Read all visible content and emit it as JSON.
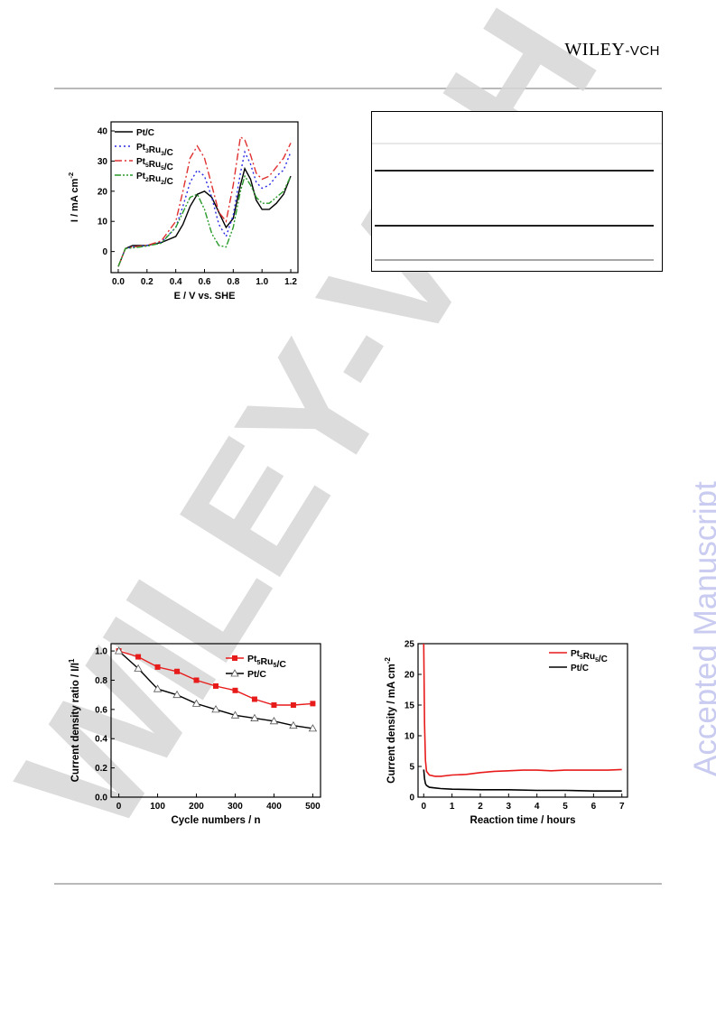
{
  "header": {
    "publisher_main": "WILEY",
    "publisher_suffix": "-VCH"
  },
  "watermarks": {
    "side": "Accepted Manuscript",
    "diagonal": "WILEY-VCH"
  },
  "figures": [
    {
      "id": "cv",
      "xlabel": "E / V vs. SHE",
      "ylabel": "I / mA cm",
      "ylabel_sup": "-2",
      "legend": [
        {
          "base": "Pt/C",
          "sub1": "",
          "mid": "",
          "sub2": "",
          "tail": ""
        },
        {
          "base": "Pt",
          "sub1": "3",
          "mid": "Ru",
          "sub2": "3",
          "tail": "/C"
        },
        {
          "base": "Pt",
          "sub1": "5",
          "mid": "Ru",
          "sub2": "5",
          "tail": "/C"
        },
        {
          "base": "Pt",
          "sub1": "2",
          "mid": "Ru",
          "sub2": "2",
          "tail": "/C"
        }
      ]
    },
    {
      "id": "stability-cycles",
      "xlabel": "Cycle numbers / n",
      "ylabel": "Current density ratio / I/I",
      "ylabel_sup": "1",
      "legend": [
        {
          "base": "Pt",
          "sub1": "5",
          "mid": "Ru",
          "sub2": "5",
          "tail": "/C"
        },
        {
          "base": "Pt/C",
          "sub1": "",
          "mid": "",
          "sub2": "",
          "tail": ""
        }
      ]
    },
    {
      "id": "chronoamperometry",
      "xlabel": "Reaction time / hours",
      "ylabel": "Current density / mA cm",
      "ylabel_sup": "-2",
      "legend": [
        {
          "base": "Pt",
          "sub1": "5",
          "mid": "Ru",
          "sub2": "5",
          "tail": "/C"
        },
        {
          "base": "Pt/C",
          "sub1": "",
          "mid": "",
          "sub2": "",
          "tail": ""
        }
      ]
    }
  ],
  "chart_data": [
    {
      "type": "line",
      "xlabel": "E / V vs. SHE",
      "ylabel": "I / mA cm-2",
      "xlim": [
        -0.05,
        1.25
      ],
      "ylim": [
        -7,
        43
      ],
      "xticks": [
        "0.0",
        "0.2",
        "0.4",
        "0.6",
        "0.8",
        "1.0",
        "1.2"
      ],
      "yticks": [
        "0",
        "10",
        "20",
        "30",
        "40"
      ],
      "series": [
        {
          "name": "Pt/C",
          "color": "#000000",
          "style": "solid",
          "x": [
            0.0,
            0.05,
            0.1,
            0.2,
            0.3,
            0.4,
            0.45,
            0.5,
            0.55,
            0.6,
            0.65,
            0.7,
            0.75,
            0.8,
            0.85,
            0.88,
            0.92,
            0.96,
            1.0,
            1.05,
            1.1,
            1.15,
            1.2
          ],
          "y": [
            -5,
            1,
            2,
            2,
            3,
            5,
            9,
            15,
            19,
            20,
            18,
            13,
            8,
            11,
            22,
            27.5,
            24,
            17,
            14,
            14,
            16,
            19,
            25
          ]
        },
        {
          "name": "Pt3Ru3/C",
          "color": "#2a2ae6",
          "style": "dotted",
          "x": [
            0.0,
            0.05,
            0.1,
            0.2,
            0.3,
            0.4,
            0.45,
            0.5,
            0.55,
            0.6,
            0.65,
            0.7,
            0.75,
            0.8,
            0.85,
            0.88,
            0.92,
            0.96,
            1.0,
            1.05,
            1.1,
            1.15,
            1.2
          ],
          "y": [
            -5,
            1,
            1.5,
            2,
            3,
            8,
            15,
            23,
            27,
            25,
            18,
            9,
            5,
            12,
            26,
            33,
            29,
            23,
            21,
            22,
            25,
            27,
            33
          ]
        },
        {
          "name": "Pt5Ru5/C",
          "color": "#e03030",
          "style": "dashdot",
          "x": [
            0.0,
            0.05,
            0.1,
            0.2,
            0.3,
            0.4,
            0.45,
            0.5,
            0.55,
            0.6,
            0.65,
            0.7,
            0.75,
            0.8,
            0.85,
            0.88,
            0.92,
            0.96,
            1.0,
            1.05,
            1.1,
            1.15,
            1.2
          ],
          "y": [
            -5,
            1,
            1.5,
            2,
            3.5,
            10,
            20,
            31,
            35,
            31,
            22,
            13,
            10,
            22,
            38,
            37,
            32,
            26,
            24,
            25,
            28,
            31,
            36
          ]
        },
        {
          "name": "Pt2Ru2/C",
          "color": "#2a9a2a",
          "style": "dashdotdot",
          "x": [
            0.0,
            0.05,
            0.1,
            0.2,
            0.3,
            0.4,
            0.45,
            0.5,
            0.55,
            0.6,
            0.65,
            0.7,
            0.75,
            0.8,
            0.85,
            0.88,
            0.92,
            0.96,
            1.0,
            1.05,
            1.1,
            1.15,
            1.2
          ],
          "y": [
            -5,
            1,
            1.2,
            1.8,
            2.8,
            8,
            13,
            18,
            19,
            14,
            6,
            2,
            1.5,
            8,
            20,
            25,
            22,
            18,
            16,
            16,
            18,
            20,
            25
          ]
        }
      ]
    },
    {
      "type": "line",
      "xlabel": "Cycle numbers / n",
      "ylabel": "Current density ratio / I/I1",
      "xlim": [
        -20,
        520
      ],
      "ylim": [
        0.0,
        1.05
      ],
      "xticks": [
        "0",
        "100",
        "200",
        "300",
        "400",
        "500"
      ],
      "yticks": [
        "0.0",
        "0.2",
        "0.4",
        "0.6",
        "0.8",
        "1.0"
      ],
      "series": [
        {
          "name": "Pt5Ru5/C",
          "color": "#e81b1b",
          "marker": "square",
          "x": [
            0,
            50,
            100,
            150,
            200,
            250,
            300,
            350,
            400,
            450,
            500
          ],
          "y": [
            1.0,
            0.96,
            0.89,
            0.86,
            0.8,
            0.76,
            0.73,
            0.67,
            0.63,
            0.63,
            0.64
          ]
        },
        {
          "name": "Pt/C",
          "color": "#000000",
          "marker": "open-triangle",
          "x": [
            0,
            50,
            100,
            150,
            200,
            250,
            300,
            350,
            400,
            450,
            500
          ],
          "y": [
            1.0,
            0.88,
            0.74,
            0.7,
            0.64,
            0.6,
            0.56,
            0.54,
            0.52,
            0.49,
            0.47
          ]
        }
      ]
    },
    {
      "type": "line",
      "xlabel": "Reaction time / hours",
      "ylabel": "Current density / mA cm-2",
      "xlim": [
        -0.2,
        7.2
      ],
      "ylim": [
        0,
        25
      ],
      "xticks": [
        "0",
        "1",
        "2",
        "3",
        "4",
        "5",
        "6",
        "7"
      ],
      "yticks": [
        "0",
        "5",
        "10",
        "15",
        "20",
        "25"
      ],
      "series": [
        {
          "name": "Pt5Ru5/C",
          "color": "#e81b1b",
          "x": [
            0.0,
            0.03,
            0.06,
            0.1,
            0.2,
            0.4,
            0.6,
            1.0,
            1.5,
            2.0,
            2.5,
            3.0,
            3.5,
            4.0,
            4.5,
            5.0,
            5.5,
            6.0,
            6.5,
            7.0
          ],
          "y": [
            25,
            12,
            6,
            4.2,
            3.6,
            3.4,
            3.4,
            3.6,
            3.7,
            4.0,
            4.2,
            4.3,
            4.4,
            4.4,
            4.3,
            4.4,
            4.4,
            4.4,
            4.4,
            4.5
          ]
        },
        {
          "name": "Pt/C",
          "color": "#000000",
          "x": [
            0.0,
            0.03,
            0.06,
            0.1,
            0.2,
            0.4,
            0.6,
            1.0,
            2.0,
            3.0,
            4.0,
            5.0,
            6.0,
            7.0
          ],
          "y": [
            4.5,
            3.0,
            2.2,
            1.9,
            1.6,
            1.5,
            1.4,
            1.3,
            1.2,
            1.2,
            1.1,
            1.1,
            1.0,
            1.0
          ]
        }
      ]
    }
  ]
}
